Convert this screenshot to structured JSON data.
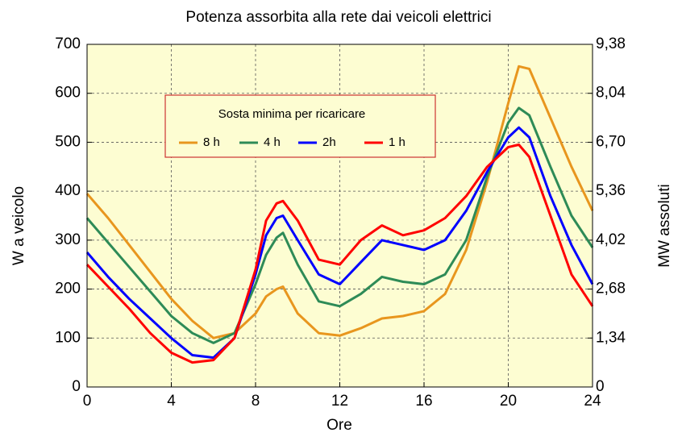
{
  "chart_data": {
    "type": "line",
    "title": "Potenza assorbita alla rete dai veicoli elettrici",
    "x_label": "Ore",
    "y_label": "W  a  veicolo",
    "y2_label": "MW  assoluti",
    "legend_title": "Sosta minima per ricaricare",
    "x": [
      0,
      1,
      2,
      3,
      4,
      5,
      6,
      7,
      8,
      8.5,
      9,
      9.3,
      10,
      11,
      12,
      13,
      14,
      15,
      16,
      17,
      18,
      19,
      20,
      20.5,
      21,
      22,
      23,
      24
    ],
    "series": [
      {
        "name": "8 h",
        "color": "#e8961e",
        "values": [
          395,
          345,
          290,
          235,
          180,
          135,
          100,
          110,
          150,
          185,
          200,
          205,
          150,
          110,
          105,
          120,
          140,
          145,
          155,
          190,
          280,
          420,
          580,
          655,
          650,
          550,
          450,
          360
        ]
      },
      {
        "name": "4 h",
        "color": "#2e8b57",
        "values": [
          345,
          295,
          245,
          195,
          145,
          110,
          90,
          110,
          210,
          270,
          305,
          315,
          250,
          175,
          165,
          190,
          225,
          215,
          210,
          230,
          300,
          430,
          540,
          570,
          555,
          450,
          350,
          285
        ]
      },
      {
        "name": "2h",
        "color": "#0000ff",
        "values": [
          275,
          225,
          180,
          140,
          100,
          65,
          60,
          100,
          230,
          310,
          345,
          350,
          300,
          230,
          210,
          255,
          300,
          290,
          280,
          300,
          360,
          440,
          510,
          530,
          510,
          390,
          290,
          210
        ]
      },
      {
        "name": "1 h",
        "color": "#ff0000",
        "values": [
          250,
          205,
          160,
          110,
          70,
          50,
          55,
          100,
          240,
          340,
          375,
          380,
          340,
          260,
          250,
          300,
          330,
          310,
          320,
          345,
          390,
          450,
          490,
          495,
          470,
          350,
          230,
          165
        ]
      }
    ],
    "xlim": [
      0,
      24
    ],
    "xticks": [
      0,
      4,
      8,
      12,
      16,
      20,
      24
    ],
    "ylim": [
      0,
      700
    ],
    "yticks": [
      0,
      100,
      200,
      300,
      400,
      500,
      600,
      700
    ],
    "y2lim": [
      0,
      9.38
    ],
    "y2ticks": [
      0,
      {
        "value": 1.34,
        "label": "1,34"
      },
      {
        "value": 2.68,
        "label": "2,68"
      },
      {
        "value": 4.02,
        "label": "4,02"
      },
      {
        "value": 5.36,
        "label": "5,36"
      },
      {
        "value": 6.7,
        "label": "6,70"
      },
      {
        "value": 8.04,
        "label": "8,04"
      },
      {
        "value": 9.38,
        "label": "9,38"
      }
    ],
    "grid": true
  }
}
